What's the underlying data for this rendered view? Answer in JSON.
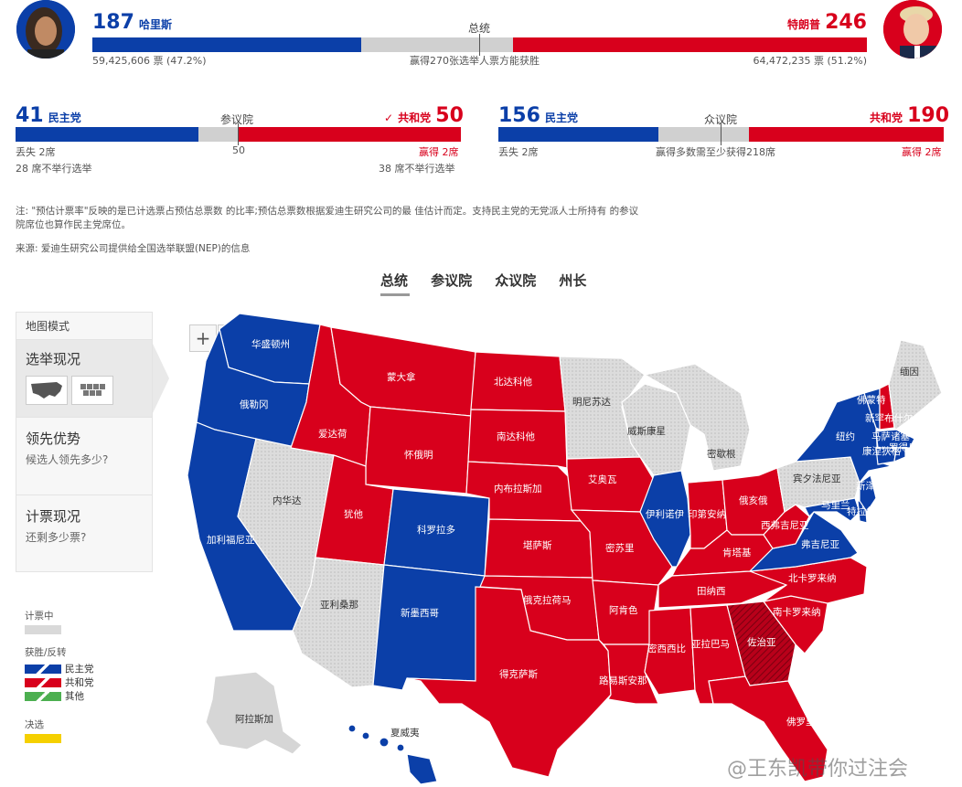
{
  "president": {
    "title": "总统",
    "dem": {
      "name": "哈里斯",
      "ev": "187",
      "votes": "59,425,606 票 (47.2%)"
    },
    "rep": {
      "name": "特朗普",
      "ev": "246",
      "votes": "64,472,235 票 (51.2%)"
    },
    "threshold_text": "赢得270张选举人票方能获胜",
    "bar": {
      "dem_ev": 187,
      "rep_ev": 246,
      "total_ev": 538
    }
  },
  "senate": {
    "title": "参议院",
    "dem_seats": "41",
    "dem_label": "民主党",
    "rep_seats": "50",
    "rep_label": "共和党",
    "check_mark": "✓",
    "dem_change": "丢失 2席",
    "rep_change": "赢得 2席",
    "midline": "50",
    "dem_not_up": "28 席不举行选举",
    "rep_not_up": "38 席不举行选举",
    "bar": {
      "dem": 41,
      "rep": 50,
      "total": 100
    }
  },
  "house": {
    "title": "众议院",
    "dem_seats": "156",
    "dem_label": "民主党",
    "rep_seats": "190",
    "rep_label": "共和党",
    "dem_change": "丢失 2席",
    "rep_change": "赢得 2席",
    "midline": "赢得多数需至少获得218席",
    "bar": {
      "dem": 156,
      "rep": 190,
      "total": 435
    }
  },
  "notes": {
    "note": "注: \"预估计票率\"反映的是已计选票占预估总票数 的比率;预估总票数根据爱迪生研究公司的最 佳估计而定。支持民主党的无党派人士所持有 的参议院席位也算作民主党席位。",
    "source": "来源: 爱迪生研究公司提供给全国选举联盟(NEP)的信息"
  },
  "tabs": [
    "总统",
    "参议院",
    "众议院",
    "州长"
  ],
  "sidebar": {
    "header": "地图模式",
    "modes": [
      {
        "title": "选举现况",
        "subtitle": ""
      },
      {
        "title": "领先优势",
        "subtitle": "候选人领先多少?"
      },
      {
        "title": "计票现况",
        "subtitle": "还剩多少票?"
      }
    ]
  },
  "zoom": {
    "in": "+",
    "out": "−"
  },
  "legend": {
    "counting": "计票中",
    "win_flip": "获胜/反转",
    "dem": "民主党",
    "rep": "共和党",
    "other": "其他",
    "runoff": "决选"
  },
  "colors": {
    "dem": "#0b3fa8",
    "rep": "#d8001c",
    "counting": "#d9d9d9",
    "other": "#4caf50",
    "runoff": "#f5d000"
  },
  "states": {
    "wa": "华盛顿州",
    "or": "俄勒冈",
    "ca": "加利福尼亚",
    "nv": "内华达",
    "id": "爱达荷",
    "mt": "蒙大拿",
    "wy": "怀俄明",
    "ut": "犹他",
    "co": "科罗拉多",
    "az": "亚利桑那",
    "nm": "新墨西哥",
    "nd": "北达科他",
    "sd": "南达科他",
    "ne": "内布拉斯加",
    "ks": "堪萨斯",
    "ok": "俄克拉荷马",
    "tx": "得克萨斯",
    "mn": "明尼苏达",
    "ia": "艾奥瓦",
    "mo": "密苏里",
    "ar": "阿肯色",
    "la": "路易斯安那",
    "wi": "威斯康星",
    "il": "伊利诺伊",
    "mi": "密歇根",
    "in": "印第安纳",
    "oh": "俄亥俄",
    "ky": "肯塔基",
    "tn": "田纳西",
    "ms": "密西西比",
    "al": "亚拉巴马",
    "ga": "佐治亚",
    "fl": "佛罗里达",
    "sc": "南卡罗来纳",
    "nc": "北卡罗来纳",
    "va": "弗吉尼亚",
    "wv": "西弗吉尼亚",
    "pa": "宾夕法尼亚",
    "ny": "纽约",
    "me": "缅因",
    "vt": "佛蒙特",
    "nh": "新罕布什尔",
    "ma": "马萨诸塞",
    "ri": "罗得岛",
    "ct": "康涅狄格",
    "nj": "新泽西",
    "md": "马里兰",
    "de": "特拉华",
    "ak": "阿拉斯加",
    "hi": "夏威夷"
  },
  "watermark": "@王东凯带你过注会"
}
